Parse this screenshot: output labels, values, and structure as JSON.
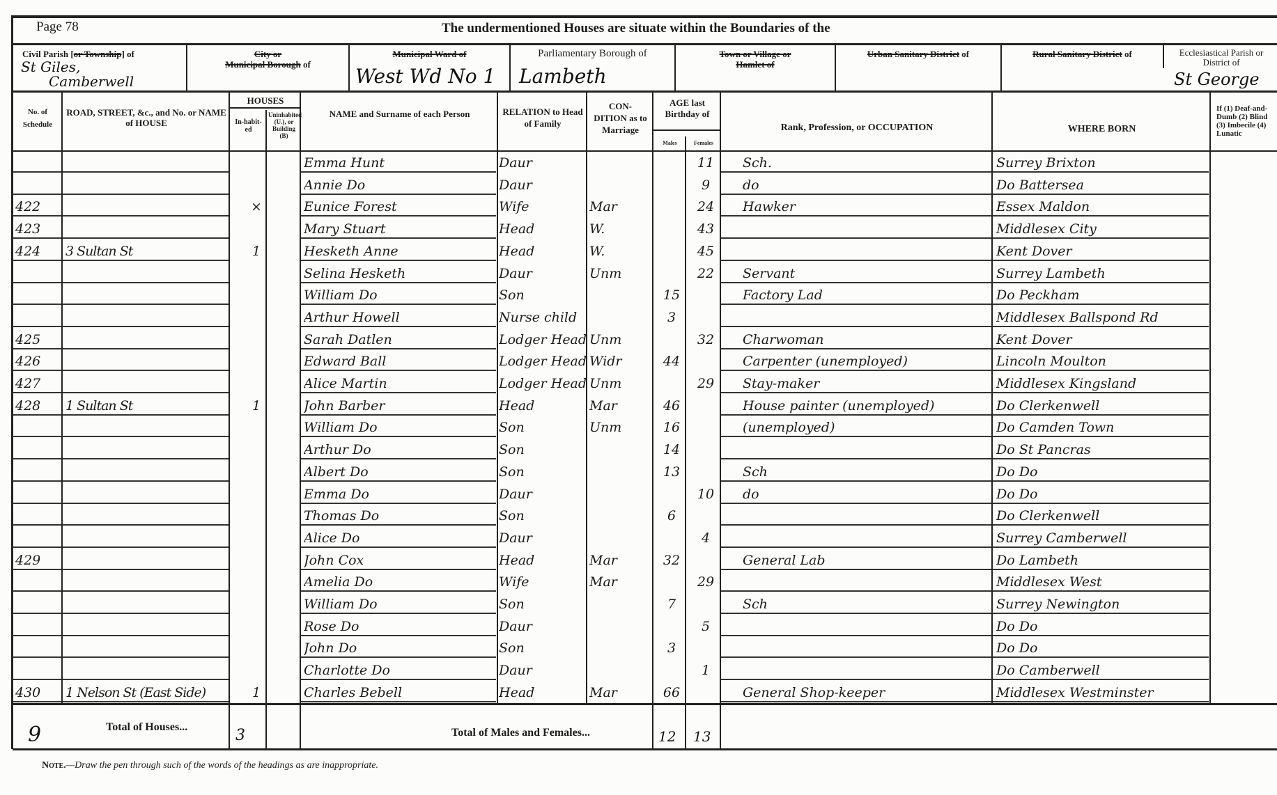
{
  "page": {
    "label": "Page",
    "number": "78"
  },
  "title": "The undermentioned Houses are situate within the Boundaries of the",
  "header_fields": {
    "civil_parish": {
      "label_a": "Civil Parish [",
      "label_struck": "or Township",
      "label_b": "] of",
      "value_line1": "St Giles,",
      "value_line2": "Camberwell"
    },
    "city": {
      "label_struck_1": "City or",
      "label_struck_2": "Municipal Borough",
      "label_b": " of",
      "value": ""
    },
    "ward": {
      "label_struck": "Municipal Ward of",
      "value": "West Wd No 1"
    },
    "parliamentary": {
      "label": "Parliamentary Borough of",
      "value": "Lambeth"
    },
    "town": {
      "label_struck_1": "Town or Village or",
      "label_struck_2": "Hamlet of",
      "value": ""
    },
    "urban": {
      "label_struck": "Urban Sanitary District",
      "label_b": " of",
      "value": ""
    },
    "rural": {
      "label_struck": "Rural Sanitary District",
      "label_b": " of",
      "value": ""
    },
    "ecclesiastical": {
      "label": "Ecclesiastical Parish or District of",
      "value": "St George"
    }
  },
  "columns": {
    "schedule": "No. of Schedule",
    "road": "ROAD, STREET, &c., and No. or NAME of HOUSE",
    "houses": "HOUSES",
    "inhabited": "In-habit-ed",
    "uninhabited": "Uninhabited (U.), or Building (B)",
    "name": "NAME and Surname of each Person",
    "relation": "RELATION to Head of Family",
    "condition": "CON-DITION as to Marriage",
    "age": "AGE last Birthday of",
    "males": "Males",
    "females": "Females",
    "occupation": "Rank, Profession, or OCCUPATION",
    "where_born": "WHERE BORN",
    "infirmity": "If (1) Deaf-and-Dumb (2) Blind (3) Imbecile (4) Lunatic"
  },
  "rows": [
    {
      "schedule": "",
      "road": "",
      "inhabited": "",
      "uninhabited": "",
      "name": "Emma Hunt",
      "relation": "Daur",
      "condition": "",
      "male_age": "",
      "female_age": "11",
      "occupation": "Sch.",
      "where_born": "Surrey Brixton"
    },
    {
      "schedule": "",
      "road": "",
      "inhabited": "",
      "uninhabited": "",
      "name": "Annie Do",
      "relation": "Daur",
      "condition": "",
      "male_age": "",
      "female_age": "9",
      "occupation": "do",
      "where_born": "Do Battersea"
    },
    {
      "schedule": "422",
      "road": "",
      "inhabited": "×",
      "uninhabited": "",
      "name": "Eunice Forest",
      "relation": "Wife",
      "condition": "Mar",
      "male_age": "",
      "female_age": "24",
      "occupation": "Hawker",
      "where_born": "Essex Maldon"
    },
    {
      "schedule": "423",
      "road": "",
      "inhabited": "",
      "uninhabited": "",
      "name": "Mary Stuart",
      "relation": "Head",
      "condition": "W.",
      "male_age": "",
      "female_age": "43",
      "occupation": "",
      "where_born": "Middlesex City"
    },
    {
      "schedule": "424",
      "road": "3 Sultan St",
      "inhabited": "1",
      "uninhabited": "",
      "name": "Hesketh Anne",
      "relation": "Head",
      "condition": "W.",
      "male_age": "",
      "female_age": "45",
      "occupation": "",
      "where_born": "Kent Dover"
    },
    {
      "schedule": "",
      "road": "",
      "inhabited": "",
      "uninhabited": "",
      "name": "Selina Hesketh",
      "relation": "Daur",
      "condition": "Unm",
      "male_age": "",
      "female_age": "22",
      "occupation": "Servant",
      "where_born": "Surrey Lambeth"
    },
    {
      "schedule": "",
      "road": "",
      "inhabited": "",
      "uninhabited": "",
      "name": "William Do",
      "relation": "Son",
      "condition": "",
      "male_age": "15",
      "female_age": "",
      "occupation": "Factory Lad",
      "where_born": "Do Peckham"
    },
    {
      "schedule": "",
      "road": "",
      "inhabited": "",
      "uninhabited": "",
      "name": "Arthur Howell",
      "relation": "Nurse child",
      "condition": "",
      "male_age": "3",
      "female_age": "",
      "occupation": "",
      "where_born": "Middlesex Ballspond Rd"
    },
    {
      "schedule": "425",
      "road": "",
      "inhabited": "",
      "uninhabited": "",
      "name": "Sarah Datlen",
      "relation": "Lodger Head",
      "condition": "Unm",
      "male_age": "",
      "female_age": "32",
      "occupation": "Charwoman",
      "where_born": "Kent Dover"
    },
    {
      "schedule": "426",
      "road": "",
      "inhabited": "",
      "uninhabited": "",
      "name": "Edward Ball",
      "relation": "Lodger Head",
      "condition": "Widr",
      "male_age": "44",
      "female_age": "",
      "occupation": "Carpenter (unemployed)",
      "where_born": "Lincoln Moulton"
    },
    {
      "schedule": "427",
      "road": "",
      "inhabited": "",
      "uninhabited": "",
      "name": "Alice Martin",
      "relation": "Lodger Head",
      "condition": "Unm",
      "male_age": "",
      "female_age": "29",
      "occupation": "Stay-maker",
      "where_born": "Middlesex Kingsland"
    },
    {
      "schedule": "428",
      "road": "1 Sultan St",
      "inhabited": "1",
      "uninhabited": "",
      "name": "John Barber",
      "relation": "Head",
      "condition": "Mar",
      "male_age": "46",
      "female_age": "",
      "occupation": "House painter (unemployed)",
      "where_born": "Do Clerkenwell"
    },
    {
      "schedule": "",
      "road": "",
      "inhabited": "",
      "uninhabited": "",
      "name": "William Do",
      "relation": "Son",
      "condition": "Unm",
      "male_age": "16",
      "female_age": "",
      "occupation": "(unemployed)",
      "where_born": "Do Camden Town"
    },
    {
      "schedule": "",
      "road": "",
      "inhabited": "",
      "uninhabited": "",
      "name": "Arthur Do",
      "relation": "Son",
      "condition": "",
      "male_age": "14",
      "female_age": "",
      "occupation": "",
      "where_born": "Do St Pancras"
    },
    {
      "schedule": "",
      "road": "",
      "inhabited": "",
      "uninhabited": "",
      "name": "Albert Do",
      "relation": "Son",
      "condition": "",
      "male_age": "13",
      "female_age": "",
      "occupation": "Sch",
      "where_born": "Do Do"
    },
    {
      "schedule": "",
      "road": "",
      "inhabited": "",
      "uninhabited": "",
      "name": "Emma Do",
      "relation": "Daur",
      "condition": "",
      "male_age": "",
      "female_age": "10",
      "occupation": "do",
      "where_born": "Do Do"
    },
    {
      "schedule": "",
      "road": "",
      "inhabited": "",
      "uninhabited": "",
      "name": "Thomas Do",
      "relation": "Son",
      "condition": "",
      "male_age": "6",
      "female_age": "",
      "occupation": "",
      "where_born": "Do Clerkenwell"
    },
    {
      "schedule": "",
      "road": "",
      "inhabited": "",
      "uninhabited": "",
      "name": "Alice Do",
      "relation": "Daur",
      "condition": "",
      "male_age": "",
      "female_age": "4",
      "occupation": "",
      "where_born": "Surrey Camberwell"
    },
    {
      "schedule": "429",
      "road": "",
      "inhabited": "",
      "uninhabited": "",
      "name": "John Cox",
      "relation": "Head",
      "condition": "Mar",
      "male_age": "32",
      "female_age": "",
      "occupation": "General Lab",
      "where_born": "Do Lambeth"
    },
    {
      "schedule": "",
      "road": "",
      "inhabited": "",
      "uninhabited": "",
      "name": "Amelia Do",
      "relation": "Wife",
      "condition": "Mar",
      "male_age": "",
      "female_age": "29",
      "occupation": "",
      "where_born": "Middlesex West"
    },
    {
      "schedule": "",
      "road": "",
      "inhabited": "",
      "uninhabited": "",
      "name": "William Do",
      "relation": "Son",
      "condition": "",
      "male_age": "7",
      "female_age": "",
      "occupation": "Sch",
      "where_born": "Surrey Newington"
    },
    {
      "schedule": "",
      "road": "",
      "inhabited": "",
      "uninhabited": "",
      "name": "Rose Do",
      "relation": "Daur",
      "condition": "",
      "male_age": "",
      "female_age": "5",
      "occupation": "",
      "where_born": "Do Do"
    },
    {
      "schedule": "",
      "road": "",
      "inhabited": "",
      "uninhabited": "",
      "name": "John Do",
      "relation": "Son",
      "condition": "",
      "male_age": "3",
      "female_age": "",
      "occupation": "",
      "where_born": "Do Do"
    },
    {
      "schedule": "",
      "road": "",
      "inhabited": "",
      "uninhabited": "",
      "name": "Charlotte Do",
      "relation": "Daur",
      "condition": "",
      "male_age": "",
      "female_age": "1",
      "occupation": "",
      "where_born": "Do Camberwell"
    },
    {
      "schedule": "430",
      "road": "1 Nelson St (East Side)",
      "inhabited": "1",
      "uninhabited": "",
      "name": "Charles Bebell",
      "relation": "Head",
      "condition": "Mar",
      "male_age": "66",
      "female_age": "",
      "occupation": "General Shop-keeper",
      "where_born": "Middlesex Westminster"
    }
  ],
  "totals": {
    "schedules_mark": "9",
    "houses_label": "Total of Houses...",
    "houses_value": "3",
    "persons_label": "Total of Males and Females...",
    "males": "12",
    "females": "13"
  },
  "note": {
    "label": "Note.",
    "text": "—Draw the pen through such of the words of the headings as are inappropriate."
  }
}
